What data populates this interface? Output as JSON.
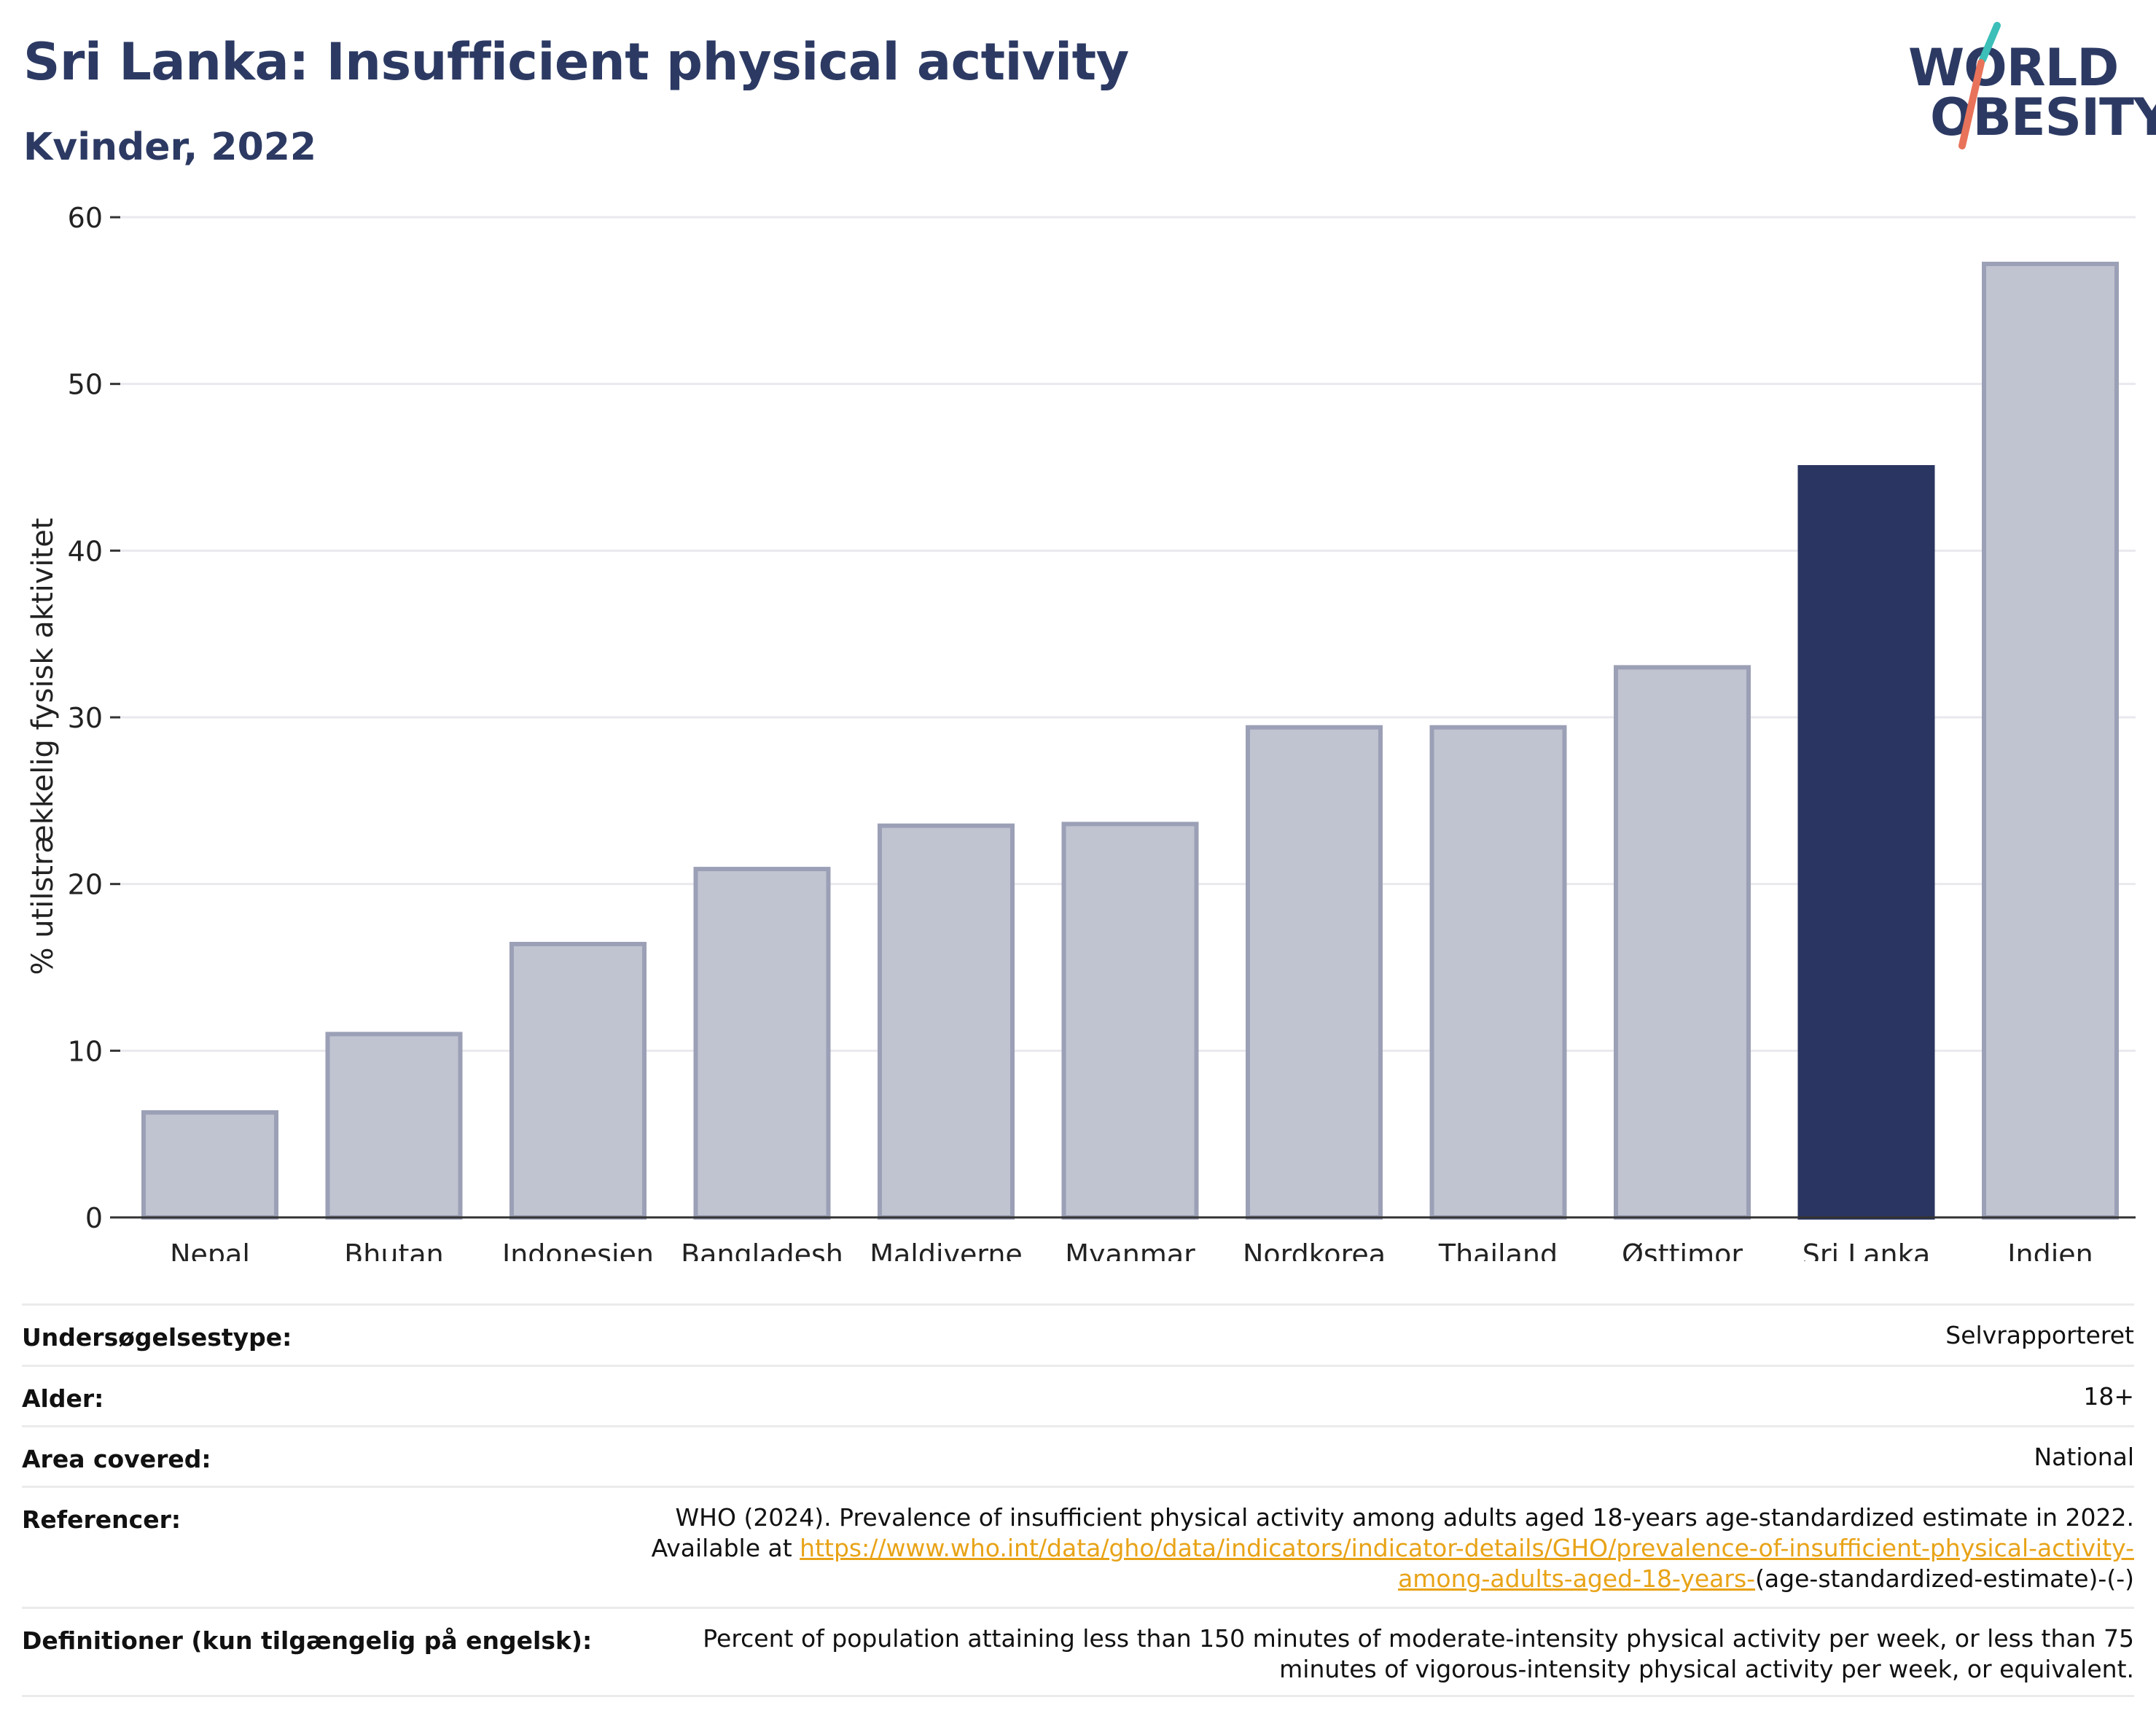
{
  "header": {
    "title": "Sri Lanka: Insufficient physical activity",
    "subtitle": "Kvinder, 2022"
  },
  "logo": {
    "line1": "WORLD",
    "line2": "OBESITY",
    "accent_teal": "#3bbfb8",
    "accent_coral": "#e8735a"
  },
  "chart_data": {
    "type": "bar",
    "categories": [
      "Nepal",
      "Bhutan",
      "Indonesien",
      "Bangladesh",
      "Maldiverne",
      "Myanmar",
      "Nordkorea",
      "Thailand",
      "Østtimor",
      "Sri Lanka",
      "Indien"
    ],
    "values": [
      6.3,
      11.0,
      16.4,
      20.9,
      23.5,
      23.6,
      29.4,
      29.4,
      33.0,
      45.0,
      57.2
    ],
    "highlight": "Sri Lanka",
    "ylabel": "% utilstrækkelig fysisk aktivitet",
    "ylim": [
      0,
      60
    ],
    "yticks": [
      0,
      10,
      20,
      30,
      40,
      50,
      60
    ],
    "grid": true,
    "colors": {
      "bar": "#c0c3d0",
      "bar_border": "#9ba0b6",
      "highlight": "#2b3561",
      "grid": "#e9e9ee"
    }
  },
  "meta": {
    "survey_type_label": "Undersøgelsestype:",
    "survey_type_value": "Selvrapporteret",
    "age_label": "Alder:",
    "age_value": "18+",
    "area_label": "Area covered:",
    "area_value": "National",
    "references_label": "Referencer:",
    "references_text": "WHO (2024). Prevalence of insufficient physical activity among adults aged 18-years age-standardized estimate in 2022. Available at",
    "references_link": "https://www.who.int/data/gho/data/indicators/indicator-details/GHO/prevalence-of-insufficient-physical-activity-among-adults-aged-18-years-",
    "references_tail": "(age-standardized-estimate)-(-)",
    "definitions_label": "Definitioner (kun tilgængelig på engelsk):",
    "definitions_text": "Percent of population attaining less than 150 minutes of moderate-intensity physical activity per week, or less than 75 minutes of vigorous-intensity physical activity per week, or equivalent."
  }
}
